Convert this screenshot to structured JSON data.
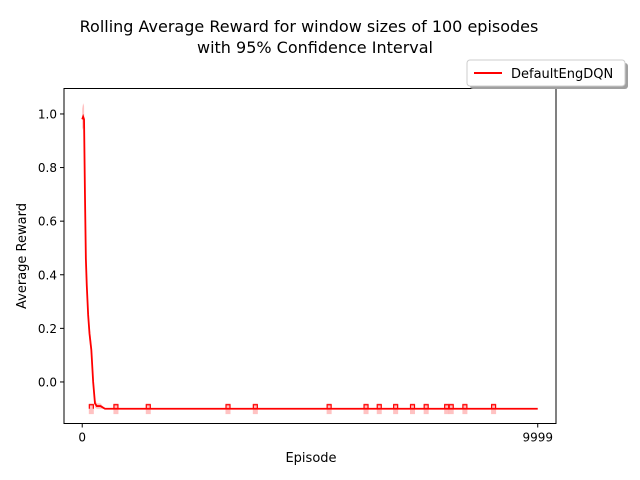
{
  "chart_data": {
    "type": "line",
    "title_line1": "Rolling Average Reward for window sizes of 100 episodes",
    "title_line2": "with 95% Confidence Interval",
    "xlabel": "Episode",
    "ylabel": "Average Reward",
    "xlim": [
      -400,
      10400
    ],
    "ylim": [
      -0.155,
      1.095
    ],
    "x_ticks": [
      0,
      9999
    ],
    "x_tick_labels": [
      "0",
      "9999"
    ],
    "y_ticks": [
      0.0,
      0.2,
      0.4,
      0.6,
      0.8,
      1.0
    ],
    "y_tick_labels": [
      "0.0",
      "0.2",
      "0.4",
      "0.6",
      "0.8",
      "1.0"
    ],
    "grid": false,
    "legend_position": "above-right",
    "series": [
      {
        "name": "DefaultEngDQN",
        "color": "#ff0000",
        "ci_color": "#ff9999",
        "x": [
          0,
          20,
          40,
          60,
          80,
          100,
          130,
          160,
          200,
          240,
          280,
          320,
          360,
          400,
          500,
          700,
          1000,
          1500,
          2000,
          3000,
          4000,
          5000,
          6000,
          7000,
          8000,
          9000,
          9999
        ],
        "y": [
          0.98,
          0.99,
          0.98,
          0.7,
          0.46,
          0.36,
          0.25,
          0.18,
          0.12,
          0.0,
          -0.08,
          -0.09,
          -0.09,
          -0.09,
          -0.1,
          -0.1,
          -0.1,
          -0.1,
          -0.1,
          -0.1,
          -0.1,
          -0.1,
          -0.1,
          -0.1,
          -0.1,
          -0.1,
          -0.1
        ],
        "ci_lower": [
          0.94,
          0.95,
          0.93,
          0.65,
          0.42,
          0.33,
          0.22,
          0.15,
          0.09,
          -0.02,
          -0.095,
          -0.1,
          -0.1,
          -0.1,
          -0.1,
          -0.1,
          -0.1,
          -0.1,
          -0.1,
          -0.1,
          -0.1,
          -0.1,
          -0.1,
          -0.1,
          -0.1,
          -0.1,
          -0.1
        ],
        "ci_upper": [
          1.02,
          1.04,
          1.03,
          0.75,
          0.5,
          0.39,
          0.28,
          0.21,
          0.15,
          0.02,
          -0.065,
          -0.08,
          -0.08,
          -0.08,
          -0.1,
          -0.1,
          -0.1,
          -0.1,
          -0.1,
          -0.1,
          -0.1,
          -0.1,
          -0.1,
          -0.1,
          -0.1,
          -0.1,
          -0.1
        ],
        "spikes": [
          200,
          740,
          1450,
          3200,
          3800,
          5420,
          6230,
          6520,
          6880,
          7250,
          7550,
          8000,
          8100,
          8400,
          9030
        ]
      }
    ]
  }
}
